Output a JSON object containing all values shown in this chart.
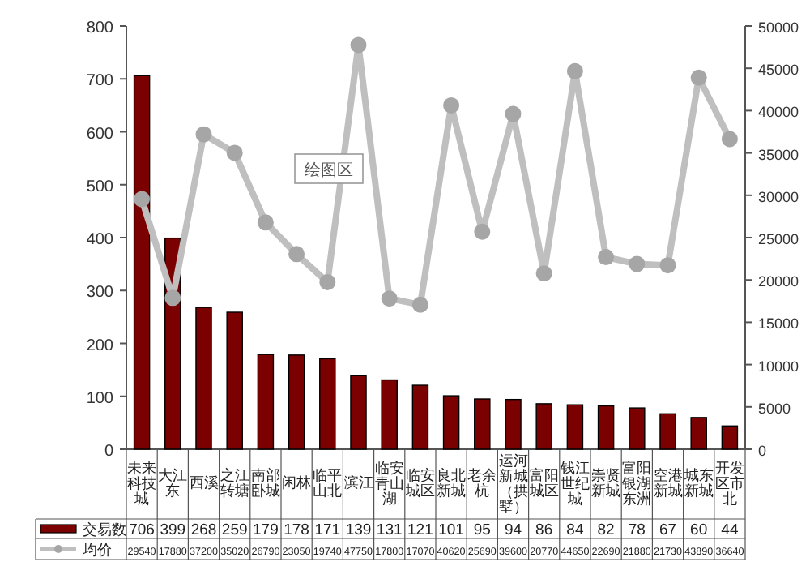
{
  "chart_data": {
    "type": "bar",
    "categories": [
      "未来科技城",
      "大江东",
      "西溪",
      "之江转塘",
      "南部卧城",
      "闲林",
      "临平山北",
      "滨江",
      "临安青山湖",
      "临安城区",
      "良北新城",
      "老余杭",
      "运河新城（拱墅）",
      "富阳城区",
      "钱江世纪城",
      "崇贤新城",
      "富阳银湖东洲",
      "空港新城",
      "城东新城",
      "开发区市北"
    ],
    "series": [
      {
        "name": "交易数",
        "color": "#7b0000",
        "values": [
          706,
          399,
          268,
          259,
          179,
          178,
          171,
          139,
          131,
          121,
          101,
          95,
          94,
          86,
          84,
          82,
          78,
          67,
          60,
          44
        ]
      },
      {
        "name": "均价",
        "type": "line",
        "axis": "y2",
        "color": "#bfbfbf",
        "values": [
          29540,
          17880,
          37200,
          35020,
          26790,
          23050,
          19740,
          47750,
          17800,
          17070,
          40620,
          25690,
          39600,
          20770,
          44650,
          22690,
          21880,
          21730,
          43890,
          36640
        ]
      }
    ],
    "ylim": [
      0,
      800
    ],
    "yticks": [
      0,
      100,
      200,
      300,
      400,
      500,
      600,
      700,
      800
    ],
    "y2lim": [
      0,
      50000
    ],
    "y2ticks": [
      0,
      5000,
      10000,
      15000,
      20000,
      25000,
      30000,
      35000,
      40000,
      45000,
      50000
    ],
    "marker": "circle",
    "data_labels": true,
    "legend": "bottom",
    "grid": false,
    "annotations": [
      "绘图区"
    ]
  }
}
